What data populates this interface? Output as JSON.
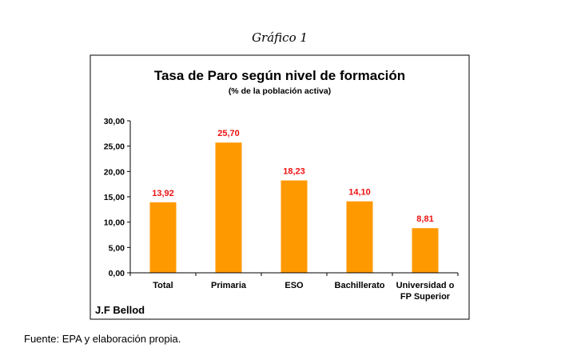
{
  "figure_caption": "Gráfico 1",
  "source_note": "Fuente: EPA y elaboración propia.",
  "author": "J.F Bellod",
  "colors": {
    "bar": "#FF9900",
    "data_label": "#EE1111",
    "frame": "#000000"
  },
  "chart_data": {
    "type": "bar",
    "title": "Tasa de Paro según nivel de formación",
    "subtitle": "(% de la población activa)",
    "categories": [
      "Total",
      "Primaria",
      "ESO",
      "Bachillerato",
      "Universidad o FP Superior"
    ],
    "category_lines": [
      [
        "Total"
      ],
      [
        "Primaria"
      ],
      [
        "ESO"
      ],
      [
        "Bachillerato"
      ],
      [
        "Universidad o",
        "FP Superior"
      ]
    ],
    "values": [
      13.92,
      25.7,
      18.23,
      14.1,
      8.81
    ],
    "value_labels": [
      "13,92",
      "25,70",
      "18,23",
      "14,10",
      "8,81"
    ],
    "yticks": [
      0,
      5,
      10,
      15,
      20,
      25,
      30
    ],
    "ytick_labels": [
      "0,00",
      "5,00",
      "10,00",
      "15,00",
      "20,00",
      "25,00",
      "30,00"
    ],
    "ylim": [
      0,
      30
    ],
    "xlabel": "",
    "ylabel": "",
    "grid": false,
    "legend": "none"
  }
}
